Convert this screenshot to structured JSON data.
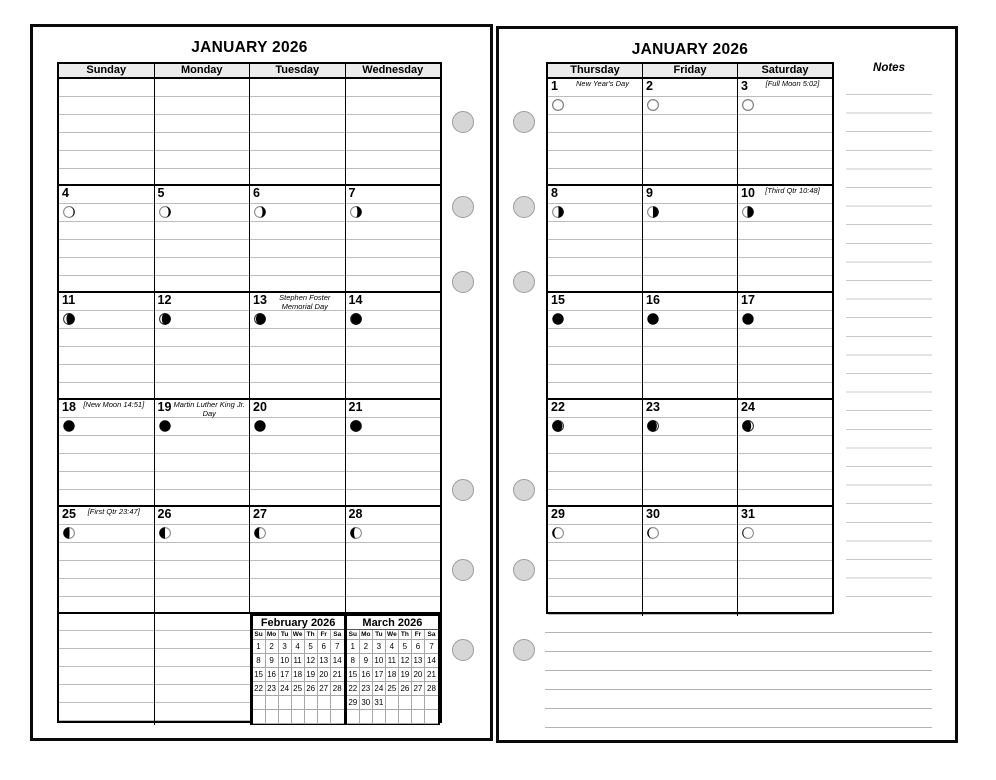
{
  "left_page": {
    "title": "JANUARY 2026",
    "day_headers": [
      "Sunday",
      "Monday",
      "Tuesday",
      "Wednesday"
    ],
    "weeks": [
      {
        "days": [
          null,
          null,
          null,
          null
        ]
      },
      {
        "days": [
          {
            "num": "4",
            "moon": {
              "side": "right",
              "dark": 0.1
            }
          },
          {
            "num": "5",
            "moon": {
              "side": "right",
              "dark": 0.18
            }
          },
          {
            "num": "6",
            "moon": {
              "side": "right",
              "dark": 0.28
            }
          },
          {
            "num": "7",
            "moon": {
              "side": "right",
              "dark": 0.38
            }
          }
        ]
      },
      {
        "days": [
          {
            "num": "11",
            "moon": {
              "side": "right",
              "dark": 0.72
            }
          },
          {
            "num": "12",
            "moon": {
              "side": "right",
              "dark": 0.78
            }
          },
          {
            "num": "13",
            "note": "Stephen Foster Memorial Day",
            "moon": {
              "side": "right",
              "dark": 0.86
            }
          },
          {
            "num": "14",
            "moon": {
              "side": "right",
              "dark": 0.93
            }
          }
        ]
      },
      {
        "days": [
          {
            "num": "18",
            "note": "[New Moon 14:51]",
            "moon": {
              "side": "new"
            }
          },
          {
            "num": "19",
            "note": "Martin Luther King Jr. Day",
            "moon": {
              "side": "new"
            }
          },
          {
            "num": "20",
            "moon": {
              "side": "new"
            }
          },
          {
            "num": "21",
            "moon": {
              "side": "left",
              "dark": 0.94
            }
          }
        ]
      },
      {
        "days": [
          {
            "num": "25",
            "note": "[First Qtr 23:47]",
            "moon": {
              "side": "left",
              "dark": 0.55
            }
          },
          {
            "num": "26",
            "moon": {
              "side": "left",
              "dark": 0.5
            }
          },
          {
            "num": "27",
            "moon": {
              "side": "left",
              "dark": 0.42
            }
          },
          {
            "num": "28",
            "moon": {
              "side": "left",
              "dark": 0.33
            }
          }
        ]
      }
    ],
    "mini_calendars": [
      {
        "title": "February 2026",
        "dow": [
          "Su",
          "Mo",
          "Tu",
          "We",
          "Th",
          "Fr",
          "Sa"
        ],
        "rows": [
          [
            "1",
            "2",
            "3",
            "4",
            "5",
            "6",
            "7"
          ],
          [
            "8",
            "9",
            "10",
            "11",
            "12",
            "13",
            "14"
          ],
          [
            "15",
            "16",
            "17",
            "18",
            "19",
            "20",
            "21"
          ],
          [
            "22",
            "23",
            "24",
            "25",
            "26",
            "27",
            "28"
          ],
          [
            "",
            "",
            "",
            "",
            "",
            "",
            ""
          ],
          [
            "",
            "",
            "",
            "",
            "",
            "",
            ""
          ]
        ]
      },
      {
        "title": "March 2026",
        "dow": [
          "Su",
          "Mo",
          "Tu",
          "We",
          "Th",
          "Fr",
          "Sa"
        ],
        "rows": [
          [
            "1",
            "2",
            "3",
            "4",
            "5",
            "6",
            "7"
          ],
          [
            "8",
            "9",
            "10",
            "11",
            "12",
            "13",
            "14"
          ],
          [
            "15",
            "16",
            "17",
            "18",
            "19",
            "20",
            "21"
          ],
          [
            "22",
            "23",
            "24",
            "25",
            "26",
            "27",
            "28"
          ],
          [
            "29",
            "30",
            "31",
            "",
            "",
            "",
            ""
          ],
          [
            "",
            "",
            "",
            "",
            "",
            "",
            ""
          ]
        ]
      }
    ]
  },
  "right_page": {
    "title": "JANUARY 2026",
    "notes_label": "Notes",
    "day_headers": [
      "Thursday",
      "Friday",
      "Saturday"
    ],
    "weeks": [
      {
        "days": [
          {
            "num": "1",
            "note": "New Year's Day",
            "moon": {
              "side": "full"
            }
          },
          {
            "num": "2",
            "moon": {
              "side": "full"
            }
          },
          {
            "num": "3",
            "note": "[Full Moon 5:02]",
            "moon": {
              "side": "full"
            }
          }
        ]
      },
      {
        "days": [
          {
            "num": "8",
            "moon": {
              "side": "right",
              "dark": 0.45
            }
          },
          {
            "num": "9",
            "moon": {
              "side": "right",
              "dark": 0.5
            }
          },
          {
            "num": "10",
            "note": "[Third Qtr 10:48]",
            "moon": {
              "side": "right",
              "dark": 0.56
            }
          }
        ]
      },
      {
        "days": [
          {
            "num": "15",
            "moon": {
              "side": "new"
            }
          },
          {
            "num": "16",
            "moon": {
              "side": "new"
            }
          },
          {
            "num": "17",
            "moon": {
              "side": "new"
            }
          }
        ]
      },
      {
        "days": [
          {
            "num": "22",
            "moon": {
              "side": "left",
              "dark": 0.88
            }
          },
          {
            "num": "23",
            "moon": {
              "side": "left",
              "dark": 0.84
            }
          },
          {
            "num": "24",
            "moon": {
              "side": "left",
              "dark": 0.78
            }
          }
        ]
      },
      {
        "days": [
          {
            "num": "29",
            "moon": {
              "side": "left",
              "dark": 0.18
            }
          },
          {
            "num": "30",
            "moon": {
              "side": "left",
              "dark": 0.12
            }
          },
          {
            "num": "31",
            "moon": {
              "side": "left",
              "dark": 0.08
            }
          }
        ]
      }
    ]
  }
}
